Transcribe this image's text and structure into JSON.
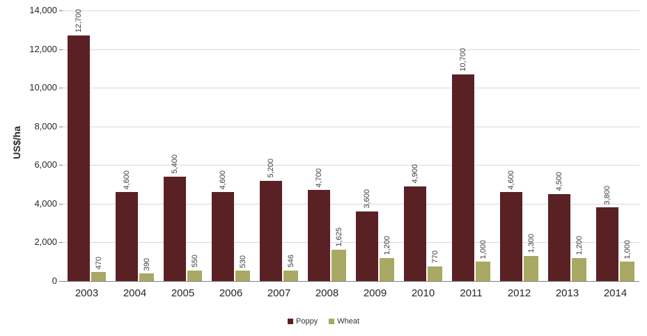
{
  "chart_data": {
    "type": "bar",
    "title": "",
    "xlabel": "",
    "ylabel": "US$/ha",
    "ylim": [
      0,
      14000
    ],
    "ytick_step": 2000,
    "grid": true,
    "legend_position": "bottom",
    "yticks": [
      {
        "value": 0,
        "label": "0"
      },
      {
        "value": 2000,
        "label": "2,000"
      },
      {
        "value": 4000,
        "label": "4,000"
      },
      {
        "value": 6000,
        "label": "6,000"
      },
      {
        "value": 8000,
        "label": "8,000"
      },
      {
        "value": 10000,
        "label": "10,000"
      },
      {
        "value": 12000,
        "label": "12,000"
      },
      {
        "value": 14000,
        "label": "14,000"
      }
    ],
    "categories": [
      "2003",
      "2004",
      "2005",
      "2006",
      "2007",
      "2008",
      "2009",
      "2010",
      "2011",
      "2012",
      "2013",
      "2014"
    ],
    "series": [
      {
        "name": "Poppy",
        "color": "#5a2125",
        "values": [
          12700,
          4600,
          5400,
          4600,
          5200,
          4700,
          3600,
          4900,
          10700,
          4600,
          4500,
          3800
        ],
        "labels": [
          "12,700",
          "4,600",
          "5,400",
          "4,600",
          "5,200",
          "4,700",
          "3,600",
          "4,900",
          "10,700",
          "4,600",
          "4,500",
          "3,800"
        ]
      },
      {
        "name": "Wheat",
        "color": "#a9a865",
        "values": [
          470,
          390,
          550,
          530,
          546,
          1625,
          1200,
          770,
          1000,
          1300,
          1200,
          1000
        ],
        "labels": [
          "470",
          "390",
          "550",
          "530",
          "546",
          "1,625",
          "1,200",
          "770",
          "1,000",
          "1,300",
          "1,200",
          "1,000"
        ]
      }
    ]
  }
}
